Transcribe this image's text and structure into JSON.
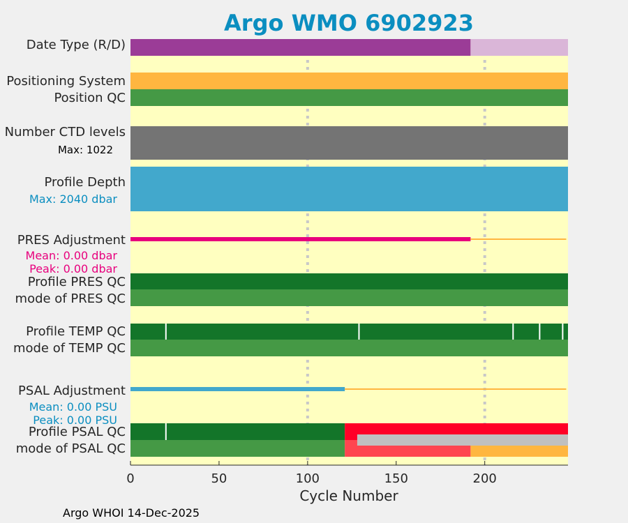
{
  "chart_data": {
    "type": "bar",
    "title": "Argo WMO 6902923",
    "xlabel": "Cycle Number",
    "xlim": [
      0,
      247
    ],
    "xticks": [
      0,
      50,
      100,
      150,
      200
    ],
    "grid_x": [
      100,
      200
    ],
    "footer": "Argo WHOI 14-Dec-2025",
    "colors": {
      "title": "#0b8ec0",
      "bg": "#ffffc0",
      "grid": "#c8c8c8",
      "pink": "#e8007d",
      "blue": "#42a8cc",
      "orange": "#ffb640"
    },
    "rows": [
      {
        "label": "Date Type (R/D)",
        "band": 0,
        "segments": [
          {
            "from": 0,
            "to": 192,
            "color": "#9b3c97"
          },
          {
            "from": 192,
            "to": 247,
            "color": "#dab6d8"
          }
        ]
      },
      {
        "label": "Positioning System",
        "band": 1,
        "segments": [
          {
            "from": 0,
            "to": 247,
            "color": "#ffb640"
          }
        ]
      },
      {
        "label": "Position QC",
        "band": 2,
        "segments": [
          {
            "from": 0,
            "to": 247,
            "color": "#459945"
          }
        ]
      },
      {
        "label": "Number CTD levels",
        "band": 3,
        "sublabel": "Max: 1022",
        "subcolor": "#000000",
        "segments": [
          {
            "from": 0,
            "to": 247,
            "color": "#747474"
          }
        ]
      },
      {
        "label": "Profile Depth",
        "band": 4,
        "sublabel": "Max: 2040 dbar",
        "subcolor": "#0b8ec0",
        "segments": [
          {
            "from": 0,
            "to": 247,
            "color": "#42a8cc"
          }
        ]
      },
      {
        "label": "PRES Adjustment",
        "band": 5,
        "sublabel": "Mean: 0.00 dbar",
        "sublabel2": "Peak: 0.00 dbar",
        "subcolor": "#e8007d",
        "lines": [
          {
            "from": 0,
            "to": 192,
            "color": "#e8007d",
            "thick": true
          },
          {
            "from": 192,
            "to": 246,
            "color": "#ffb640",
            "thick": false
          }
        ]
      },
      {
        "label": "Profile PRES QC",
        "band": 6,
        "segments": [
          {
            "from": 0,
            "to": 247,
            "color": "#137529"
          }
        ]
      },
      {
        "label": "mode of PRES QC",
        "band": 7,
        "segments": [
          {
            "from": 0,
            "to": 247,
            "color": "#459945"
          }
        ]
      },
      {
        "label": "Profile TEMP QC",
        "band": 8,
        "segments": [
          {
            "from": 0,
            "to": 247,
            "color": "#137529"
          }
        ],
        "ticks": [
          20,
          129,
          216,
          231,
          244
        ]
      },
      {
        "label": "mode of TEMP QC",
        "band": 9,
        "segments": [
          {
            "from": 0,
            "to": 247,
            "color": "#459945"
          }
        ]
      },
      {
        "label": "PSAL Adjustment",
        "band": 10,
        "sublabel": "Mean: 0.00 PSU",
        "sublabel2": "Peak: 0.00 PSU",
        "subcolor": "#0b8ec0",
        "lines": [
          {
            "from": 0,
            "to": 121,
            "color": "#42a8cc",
            "thick": true
          },
          {
            "from": 121,
            "to": 246,
            "color": "#ffb640",
            "thick": false
          }
        ]
      },
      {
        "label": "Profile PSAL QC",
        "band": 11,
        "segments": [
          {
            "from": 0,
            "to": 121,
            "color": "#137529"
          },
          {
            "from": 121,
            "to": 247,
            "color": "#ff0027"
          }
        ],
        "ticks": [
          20
        ]
      },
      {
        "label": "mode of PSAL QC",
        "band": 12,
        "segments": [
          {
            "from": 0,
            "to": 121,
            "color": "#459945"
          },
          {
            "from": 121,
            "to": 192,
            "color": "#ff4550"
          },
          {
            "from": 192,
            "to": 247,
            "color": "#ffb640"
          }
        ],
        "overlay": {
          "from": 128,
          "to": 247,
          "color": "#c0c0c0"
        }
      }
    ]
  }
}
